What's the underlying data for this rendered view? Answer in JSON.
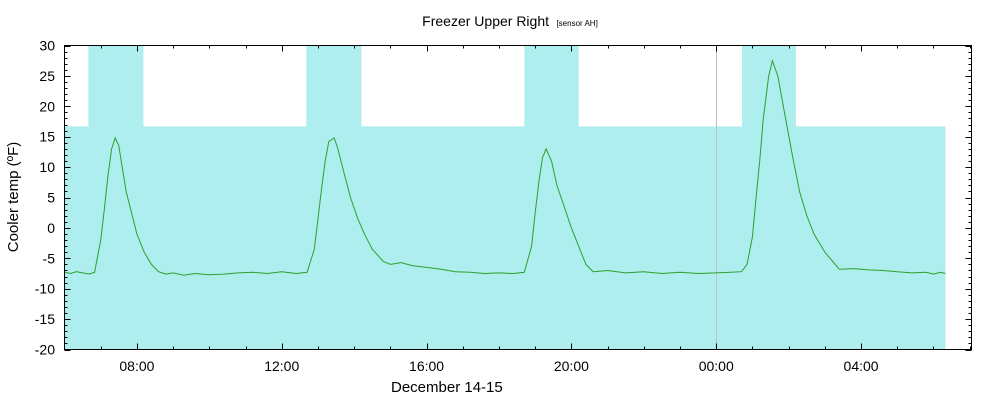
{
  "chart_data": {
    "type": "line",
    "title": "Freezer Upper Right",
    "subtitle": "[sensor AH]",
    "xlabel": "December 14-15",
    "ylabel": "Cooler temp (ºF)",
    "ylim": [
      -20,
      30
    ],
    "yticks": [
      30,
      25,
      20,
      15,
      10,
      5,
      0,
      -5,
      -10,
      -15,
      -20
    ],
    "xlim_hours": [
      6.0,
      31.05
    ],
    "xticks": [
      {
        "label": "08:00",
        "hour": 8
      },
      {
        "label": "12:00",
        "hour": 12
      },
      {
        "label": "16:00",
        "hour": 16
      },
      {
        "label": "20:00",
        "hour": 20
      },
      {
        "label": "00:00",
        "hour": 24
      },
      {
        "label": "04:00",
        "hour": 28
      }
    ],
    "midnight_marker_hour": 24,
    "grid": false,
    "colors": {
      "line": "#2ca02c",
      "band": "#afeeee",
      "axis": "#000000",
      "midnight": "#c0c0c0"
    },
    "background_band": {
      "from_hour": 6.0,
      "to_hour": 30.33,
      "top_value": 16.7
    },
    "door_open_bands": [
      {
        "from_hour": 6.66,
        "to_hour": 8.18,
        "top_value": 30
      },
      {
        "from_hour": 12.68,
        "to_hour": 14.2,
        "top_value": 30
      },
      {
        "from_hour": 18.7,
        "to_hour": 20.2,
        "top_value": 30
      },
      {
        "from_hour": 24.71,
        "to_hour": 26.2,
        "top_value": 30
      }
    ],
    "series": [
      {
        "name": "Cooler temp",
        "x_hours": [
          6.0,
          6.17,
          6.33,
          6.5,
          6.67,
          6.83,
          7.0,
          7.1,
          7.2,
          7.3,
          7.4,
          7.5,
          7.6,
          7.7,
          7.85,
          8.0,
          8.2,
          8.4,
          8.6,
          8.8,
          9.0,
          9.3,
          9.6,
          10.0,
          10.4,
          10.8,
          11.2,
          11.6,
          12.0,
          12.4,
          12.7,
          12.9,
          13.0,
          13.1,
          13.2,
          13.3,
          13.45,
          13.55,
          13.7,
          13.9,
          14.1,
          14.3,
          14.5,
          14.8,
          15.0,
          15.3,
          15.6,
          16.0,
          16.4,
          16.8,
          17.2,
          17.6,
          18.0,
          18.4,
          18.7,
          18.9,
          19.0,
          19.1,
          19.2,
          19.3,
          19.45,
          19.6,
          19.8,
          20.0,
          20.2,
          20.4,
          20.6,
          21.0,
          21.5,
          22.0,
          22.5,
          23.0,
          23.5,
          24.0,
          24.4,
          24.7,
          24.85,
          25.0,
          25.1,
          25.2,
          25.3,
          25.45,
          25.55,
          25.7,
          25.9,
          26.1,
          26.3,
          26.5,
          26.7,
          27.0,
          27.4,
          27.8,
          28.2,
          28.6,
          29.0,
          29.4,
          29.8,
          30.0,
          30.2,
          30.33
        ],
        "values": [
          -7.3,
          -7.5,
          -7.2,
          -7.4,
          -7.6,
          -7.3,
          -2.0,
          3.0,
          8.5,
          13.0,
          14.8,
          13.5,
          9.8,
          6.0,
          2.5,
          -1.0,
          -4.0,
          -6.0,
          -7.2,
          -7.6,
          -7.4,
          -7.8,
          -7.5,
          -7.7,
          -7.6,
          -7.4,
          -7.3,
          -7.5,
          -7.2,
          -7.5,
          -7.3,
          -3.5,
          1.5,
          6.5,
          11.0,
          14.2,
          14.8,
          13.0,
          9.5,
          5.0,
          1.5,
          -1.2,
          -3.5,
          -5.5,
          -6.0,
          -5.7,
          -6.2,
          -6.5,
          -6.8,
          -7.2,
          -7.3,
          -7.5,
          -7.4,
          -7.5,
          -7.3,
          -3.0,
          2.5,
          7.5,
          11.5,
          13.0,
          11.0,
          7.0,
          3.5,
          0.0,
          -3.0,
          -6.0,
          -7.2,
          -7.0,
          -7.4,
          -7.2,
          -7.5,
          -7.3,
          -7.5,
          -7.4,
          -7.3,
          -7.2,
          -6.0,
          -1.5,
          5.0,
          11.0,
          18.0,
          25.0,
          27.5,
          25.0,
          18.5,
          12.0,
          6.0,
          2.0,
          -1.0,
          -4.0,
          -6.8,
          -6.7,
          -6.9,
          -7.0,
          -7.2,
          -7.4,
          -7.3,
          -7.6,
          -7.3,
          -7.5
        ]
      }
    ]
  }
}
